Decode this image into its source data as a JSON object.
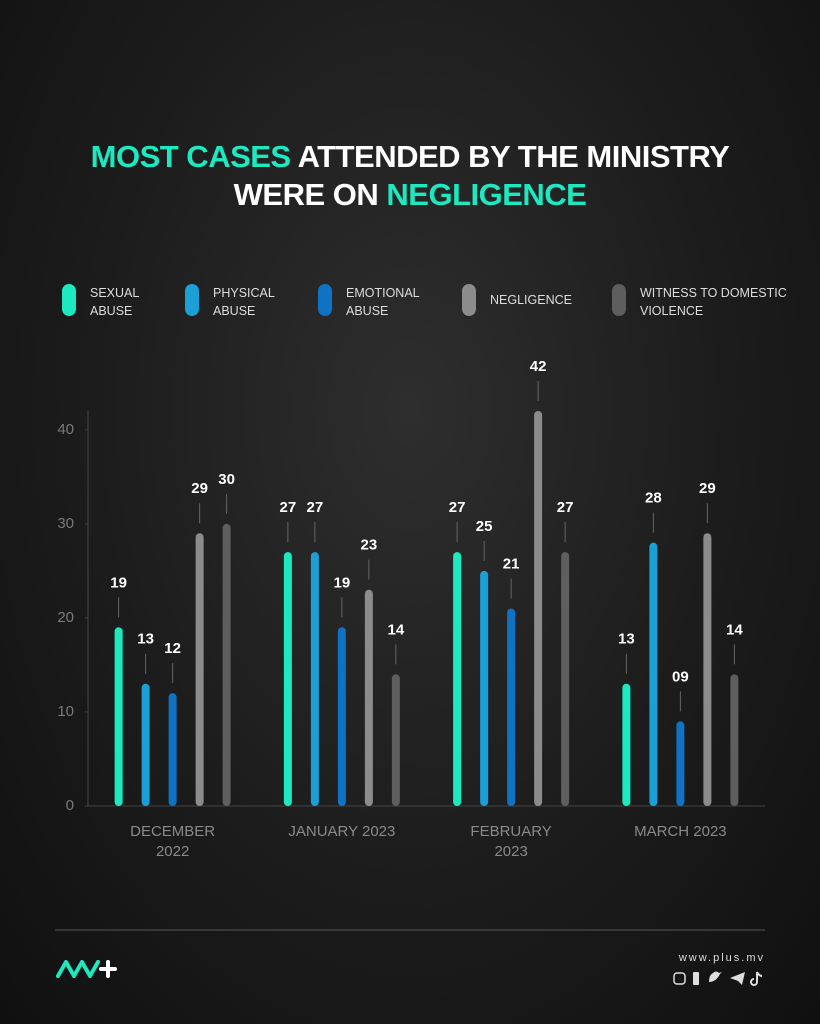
{
  "chart_data": {
    "type": "bar",
    "title_runs": [
      {
        "text": "MOST CASES",
        "highlight": true
      },
      {
        "text": "ATTENDED BY THE MINISTRY",
        "highlight": false
      },
      {
        "text": "WERE ON",
        "highlight": false
      },
      {
        "text": "NEGLIGENCE",
        "highlight": true
      }
    ],
    "highlight_color": "#1de9c0",
    "categories": [
      "DECEMBER 2022",
      "JANUARY 2023",
      "FEBRUARY 2023",
      "MARCH 2023"
    ],
    "series": [
      {
        "name": "SEXUAL ABUSE",
        "color": "#1de9c0",
        "values": [
          19,
          27,
          27,
          13
        ]
      },
      {
        "name": "PHYSICAL ABUSE",
        "color": "#1a9fd6",
        "values": [
          13,
          27,
          25,
          28
        ]
      },
      {
        "name": "EMOTIONAL ABUSE",
        "color": "#0f72c2",
        "values": [
          12,
          19,
          21,
          9
        ],
        "value_labels": [
          "12",
          "19",
          "21",
          "09"
        ]
      },
      {
        "name": "NEGLIGENCE",
        "color": "#8c8c8c",
        "values": [
          29,
          23,
          42,
          29
        ]
      },
      {
        "name": "WITNESS TO DOMESTIC VIOLENCE",
        "color": "#5e5e5e",
        "values": [
          30,
          14,
          27,
          14
        ]
      }
    ],
    "ylim": [
      0,
      42
    ],
    "yticks": [
      0,
      10,
      20,
      30,
      40
    ],
    "website": "www.plus.mv"
  }
}
